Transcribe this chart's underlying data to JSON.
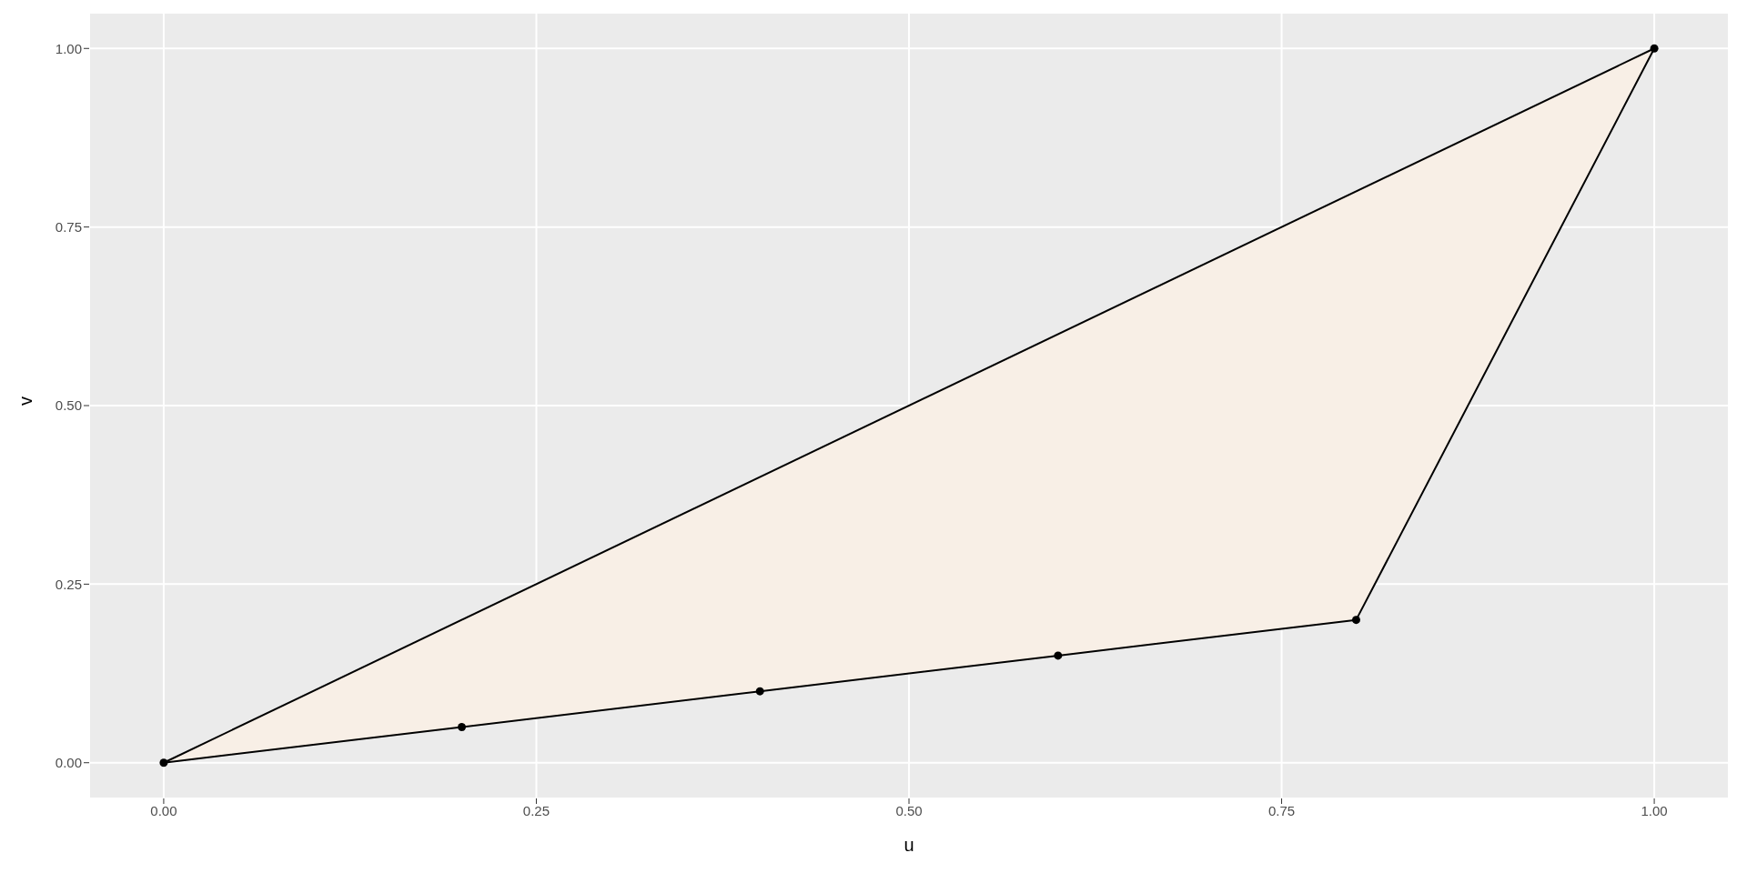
{
  "chart_data": {
    "type": "line",
    "xlabel": "u",
    "ylabel": "v",
    "xlim": [
      -0.05,
      1.05
    ],
    "ylim": [
      -0.05,
      1.05
    ],
    "xticks": [
      {
        "value": 0,
        "label": "0.00"
      },
      {
        "value": 0.25,
        "label": "0.25"
      },
      {
        "value": 0.5,
        "label": "0.50"
      },
      {
        "value": 0.75,
        "label": "0.75"
      },
      {
        "value": 1,
        "label": "1.00"
      }
    ],
    "yticks": [
      {
        "value": 0,
        "label": "0.00"
      },
      {
        "value": 0.25,
        "label": "0.25"
      },
      {
        "value": 0.5,
        "label": "0.50"
      },
      {
        "value": 0.75,
        "label": "0.75"
      },
      {
        "value": 1,
        "label": "1.00"
      }
    ],
    "grid": true,
    "legend": false,
    "series": [
      {
        "color": "#000000",
        "x": [
          0,
          0.2,
          0.4,
          0.6,
          0.8,
          1
        ],
        "values": [
          0,
          0.05,
          0.1,
          0.15,
          0.2,
          1
        ],
        "marker": "circle",
        "lower": [
          0,
          0.05,
          0.1,
          0.15,
          0.2,
          1
        ],
        "upper": [
          0,
          0.2,
          0.4,
          0.6,
          0.8,
          1
        ]
      },
      {
        "color": "#000000",
        "x": [
          0,
          1
        ],
        "values": [
          0,
          1
        ],
        "marker": "none"
      }
    ]
  }
}
